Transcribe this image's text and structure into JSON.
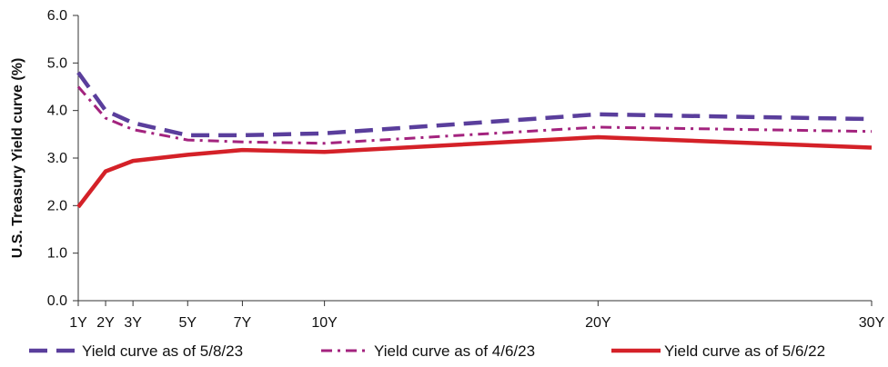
{
  "chart_data": {
    "type": "line",
    "title": "",
    "xlabel": "",
    "ylabel": "U.S. Treasury Yield curve (%)",
    "ylim": [
      0,
      6
    ],
    "yticks": [
      "0.0",
      "1.0",
      "2.0",
      "3.0",
      "4.0",
      "5.0",
      "6.0"
    ],
    "xlim": [
      1,
      30
    ],
    "x": [
      1,
      2,
      3,
      5,
      7,
      10,
      20,
      30
    ],
    "xtick_labels": [
      "1Y",
      "2Y",
      "3Y",
      "5Y",
      "7Y",
      "10Y",
      "20Y",
      "30Y"
    ],
    "grid": false,
    "legend_position": "bottom",
    "series": [
      {
        "name": "Yield curve as of 5/8/23",
        "color": "#5a3e9c",
        "style": "dashed",
        "values": [
          4.8,
          4.0,
          3.74,
          3.48,
          3.48,
          3.52,
          3.92,
          3.82
        ]
      },
      {
        "name": "Yield curve as of 4/6/23",
        "color": "#a3237e",
        "style": "dashdot",
        "values": [
          4.5,
          3.84,
          3.6,
          3.38,
          3.34,
          3.31,
          3.65,
          3.56
        ]
      },
      {
        "name": "Yield curve as of 5/6/22",
        "color": "#d42128",
        "style": "solid",
        "values": [
          1.97,
          2.72,
          2.94,
          3.07,
          3.17,
          3.13,
          3.44,
          3.22
        ]
      }
    ]
  }
}
